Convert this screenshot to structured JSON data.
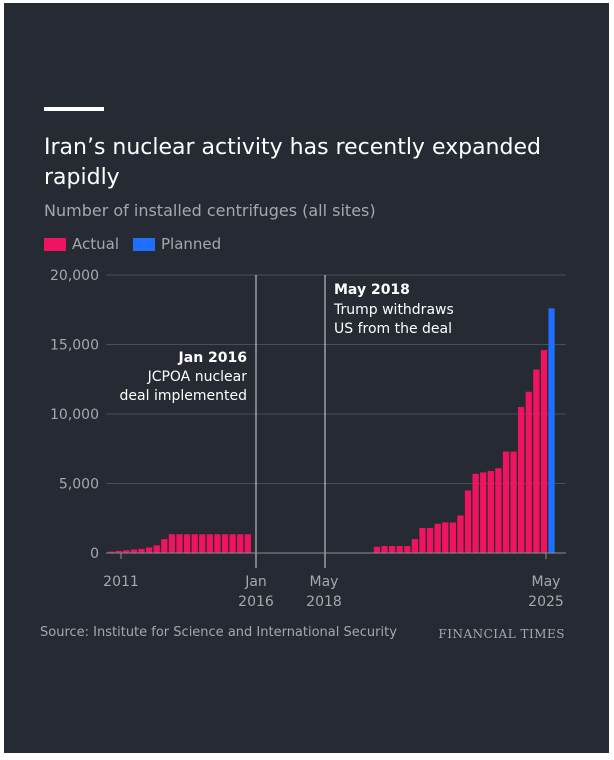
{
  "header": {
    "title": "Iran’s nuclear activity has recently expanded rapidly",
    "subtitle": "Number of installed centrifuges (all sites)"
  },
  "legend": {
    "actual_label": "Actual",
    "planned_label": "Planned",
    "actual_color": "#f0135f",
    "planned_color": "#1f6fff"
  },
  "annotations": {
    "jan2016_bold": "Jan 2016",
    "jan2016_line1": "JCPOA nuclear",
    "jan2016_line2": "deal implemented",
    "may2018_bold": "May 2018",
    "may2018_line1": "Trump withdraws",
    "may2018_line2": "US from the deal"
  },
  "x_labels": {
    "l2011": "2011",
    "jan_top": "Jan",
    "jan_bottom": "2016",
    "may2018_top": "May",
    "may2018_bottom": "2018",
    "may2025_top": "May",
    "may2025_bottom": "2025"
  },
  "footer": {
    "source": "Source: Institute for Science and International Security",
    "brand": "FINANCIAL TIMES"
  },
  "chart_data": {
    "type": "bar",
    "ylim": [
      0,
      20000
    ],
    "yticks": [
      "20,000",
      "15,000",
      "10,000",
      "5,000",
      "0"
    ],
    "ytick_values": [
      20000,
      15000,
      10000,
      5000,
      0
    ],
    "grid": true,
    "series": [
      {
        "name": "Actual",
        "values": [
          100,
          150,
          200,
          250,
          300,
          400,
          550,
          1000,
          1350,
          1350,
          1350,
          1350,
          1350,
          1350,
          1350,
          1350,
          1350,
          1350,
          1350,
          0,
          0,
          0,
          0,
          0,
          0,
          0,
          0,
          0,
          0,
          0,
          0,
          0,
          0,
          0,
          0,
          450,
          500,
          500,
          500,
          500,
          1000,
          1800,
          1800,
          2100,
          2200,
          2200,
          2700,
          4500,
          5700,
          5800,
          5900,
          6100,
          7300,
          7300,
          10500,
          11600,
          13200,
          14600,
          0
        ]
      },
      {
        "name": "Planned",
        "values": [
          0,
          0,
          0,
          0,
          0,
          0,
          0,
          0,
          0,
          0,
          0,
          0,
          0,
          0,
          0,
          0,
          0,
          0,
          0,
          0,
          0,
          0,
          0,
          0,
          0,
          0,
          0,
          0,
          0,
          0,
          0,
          0,
          0,
          0,
          0,
          0,
          0,
          0,
          0,
          0,
          0,
          0,
          0,
          0,
          0,
          0,
          0,
          0,
          0,
          0,
          0,
          0,
          0,
          0,
          0,
          0,
          0,
          0,
          17600
        ]
      }
    ]
  }
}
